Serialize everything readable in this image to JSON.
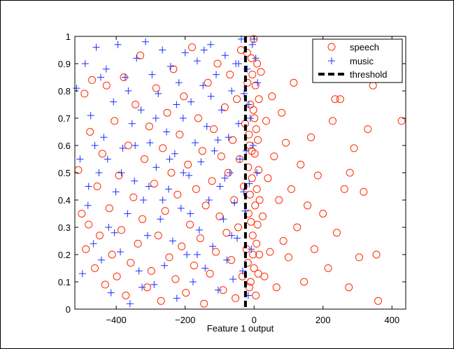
{
  "chart_data": {
    "type": "scatter",
    "title": "",
    "xlabel": "Feature 1 output",
    "ylabel": "",
    "xlim": [
      -520,
      440
    ],
    "ylim": [
      0,
      1
    ],
    "xticks": [
      -400,
      -200,
      0,
      200,
      400
    ],
    "yticks": [
      0,
      0.1,
      0.2,
      0.3,
      0.4,
      0.5,
      0.6,
      0.7,
      0.8,
      0.9,
      1
    ],
    "grid": false,
    "legend_position": "top-right",
    "threshold_x": -25,
    "series": [
      {
        "name": "speech",
        "marker": "circle",
        "color": "#ff2a00",
        "points": [
          [
            -510,
            0.51
          ],
          [
            -500,
            0.35
          ],
          [
            -492,
            0.79
          ],
          [
            -488,
            0.22
          ],
          [
            -480,
            0.31
          ],
          [
            -476,
            0.65
          ],
          [
            -470,
            0.84
          ],
          [
            -462,
            0.15
          ],
          [
            -455,
            0.45
          ],
          [
            -448,
            0.27
          ],
          [
            -440,
            0.57
          ],
          [
            -432,
            0.09
          ],
          [
            -428,
            0.82
          ],
          [
            -420,
            0.37
          ],
          [
            -412,
            0.2
          ],
          [
            -405,
            0.69
          ],
          [
            -398,
            0.12
          ],
          [
            -392,
            0.49
          ],
          [
            -385,
            0.29
          ],
          [
            -378,
            0.85
          ],
          [
            -372,
            0.05
          ],
          [
            -365,
            0.6
          ],
          [
            -358,
            0.17
          ],
          [
            -350,
            0.41
          ],
          [
            -344,
            0.75
          ],
          [
            -337,
            0.24
          ],
          [
            -330,
            0.93
          ],
          [
            -324,
            0.33
          ],
          [
            -318,
            0.55
          ],
          [
            -310,
            0.08
          ],
          [
            -304,
            0.67
          ],
          [
            -298,
            0.14
          ],
          [
            -290,
            0.46
          ],
          [
            -284,
            0.81
          ],
          [
            -278,
            0.27
          ],
          [
            -270,
            0.03
          ],
          [
            -265,
            0.59
          ],
          [
            -258,
            0.36
          ],
          [
            -252,
            0.72
          ],
          [
            -246,
            0.19
          ],
          [
            -240,
            0.5
          ],
          [
            -234,
            0.88
          ],
          [
            -228,
            0.11
          ],
          [
            -222,
            0.42
          ],
          [
            -216,
            0.64
          ],
          [
            -210,
            0.23
          ],
          [
            -204,
            0.78
          ],
          [
            -198,
            0.06
          ],
          [
            -192,
            0.53
          ],
          [
            -186,
            0.31
          ],
          [
            -180,
            0.96
          ],
          [
            -174,
            0.16
          ],
          [
            -168,
            0.44
          ],
          [
            -162,
            0.7
          ],
          [
            -156,
            0.26
          ],
          [
            -150,
            0.58
          ],
          [
            -145,
            0.02
          ],
          [
            -140,
            0.38
          ],
          [
            -134,
            0.83
          ],
          [
            -128,
            0.13
          ],
          [
            -122,
            0.47
          ],
          [
            -117,
            0.66
          ],
          [
            -111,
            0.21
          ],
          [
            -106,
            0.9
          ],
          [
            -100,
            0.34
          ],
          [
            -95,
            0.56
          ],
          [
            -90,
            0.07
          ],
          [
            -85,
            0.74
          ],
          [
            -80,
            0.28
          ],
          [
            -75,
            0.5
          ],
          [
            -70,
            0.86
          ],
          [
            -66,
            0.18
          ],
          [
            -62,
            0.62
          ],
          [
            -58,
            0.4
          ],
          [
            -54,
            0.04
          ],
          [
            -50,
            0.77
          ],
          [
            -46,
            0.3
          ],
          [
            -42,
            0.55
          ],
          [
            -38,
            0.95
          ],
          [
            -34,
            0.12
          ],
          [
            -30,
            0.45
          ],
          [
            -26,
            0.68
          ],
          [
            -22,
            0.22
          ],
          [
            -19,
            0.83
          ],
          [
            -16,
            0.35
          ],
          [
            -13,
            0.6
          ],
          [
            -10,
            0.1
          ],
          [
            -8,
            0.92
          ],
          [
            -6,
            0.48
          ],
          [
            -4,
            0.27
          ],
          [
            -2,
            0.73
          ],
          [
            0,
            0.15
          ],
          [
            2,
            0.57
          ],
          [
            3,
            0.38
          ],
          [
            4,
            0.82
          ],
          [
            5,
            0.05
          ],
          [
            6,
            0.66
          ],
          [
            7,
            0.24
          ],
          [
            8,
            0.44
          ],
          [
            9,
            0.9
          ],
          [
            10,
            0.31
          ],
          [
            11,
            0.62
          ],
          [
            12,
            0.13
          ],
          [
            13,
            0.51
          ],
          [
            14,
            0.77
          ],
          [
            15,
            0.2
          ],
          [
            16,
            0.4
          ],
          [
            -1,
            0.99
          ],
          [
            1,
            0.7
          ],
          [
            -3,
            0.2
          ],
          [
            -5,
            0.86
          ],
          [
            -7,
            0.58
          ],
          [
            -9,
            0.32
          ],
          [
            -11,
            0.75
          ],
          [
            -12,
            0.42
          ],
          [
            -14,
            0.08
          ],
          [
            -15,
            0.64
          ],
          [
            -17,
            0.52
          ],
          [
            -18,
            0.17
          ],
          [
            -20,
            0.94
          ],
          [
            20,
            0.87
          ],
          [
            25,
            0.34
          ],
          [
            30,
            0.12
          ],
          [
            35,
            0.69
          ],
          [
            40,
            0.48
          ],
          [
            46,
            0.21
          ],
          [
            52,
            0.78
          ],
          [
            58,
            0.56
          ],
          [
            65,
            0.08
          ],
          [
            72,
            0.4
          ],
          [
            80,
            0.72
          ],
          [
            85,
            0.25
          ],
          [
            92,
            0.61
          ],
          [
            100,
            0.19
          ],
          [
            108,
            0.44
          ],
          [
            115,
            0.83
          ],
          [
            125,
            0.3
          ],
          [
            135,
            0.53
          ],
          [
            145,
            0.1
          ],
          [
            155,
            0.38
          ],
          [
            165,
            0.63
          ],
          [
            175,
            0.22
          ],
          [
            185,
            0.49
          ],
          [
            200,
            0.35
          ],
          [
            215,
            0.15
          ],
          [
            228,
            0.69
          ],
          [
            240,
            0.28
          ],
          [
            250,
            0.77
          ],
          [
            262,
            0.44
          ],
          [
            275,
            0.08
          ],
          [
            290,
            0.59
          ],
          [
            305,
            0.19
          ],
          [
            318,
            0.43
          ],
          [
            330,
            0.66
          ],
          [
            345,
            0.82
          ],
          [
            360,
            0.03
          ],
          [
            428,
            0.69
          ],
          [
            355,
            0.2
          ],
          [
            235,
            0.77
          ],
          [
            278,
            0.5
          ]
        ]
      },
      {
        "name": "music",
        "marker": "plus",
        "color": "#1a2cff",
        "points": [
          [
            -515,
            0.81
          ],
          [
            -505,
            0.55
          ],
          [
            -498,
            0.13
          ],
          [
            -490,
            0.9
          ],
          [
            -482,
            0.38
          ],
          [
            -474,
            0.71
          ],
          [
            -466,
            0.24
          ],
          [
            -458,
            0.96
          ],
          [
            -450,
            0.5
          ],
          [
            -443,
            0.18
          ],
          [
            -436,
            0.63
          ],
          [
            -429,
            0.88
          ],
          [
            -422,
            0.3
          ],
          [
            -415,
            0.06
          ],
          [
            -408,
            0.76
          ],
          [
            -401,
            0.43
          ],
          [
            -395,
            0.97
          ],
          [
            -388,
            0.21
          ],
          [
            -381,
            0.59
          ],
          [
            -374,
            0.85
          ],
          [
            -367,
            0.35
          ],
          [
            -360,
            0.02
          ],
          [
            -354,
            0.68
          ],
          [
            -347,
            0.47
          ],
          [
            -341,
            0.92
          ],
          [
            -334,
            0.14
          ],
          [
            -328,
            0.73
          ],
          [
            -321,
            0.4
          ],
          [
            -315,
            0.98
          ],
          [
            -309,
            0.27
          ],
          [
            -302,
            0.61
          ],
          [
            -296,
            0.86
          ],
          [
            -290,
            0.09
          ],
          [
            -284,
            0.52
          ],
          [
            -278,
            0.79
          ],
          [
            -272,
            0.33
          ],
          [
            -266,
            0.95
          ],
          [
            -260,
            0.16
          ],
          [
            -254,
            0.65
          ],
          [
            -248,
            0.44
          ],
          [
            -242,
            0.89
          ],
          [
            -236,
            0.25
          ],
          [
            -230,
            0.57
          ],
          [
            -224,
            0.04
          ],
          [
            -218,
            0.83
          ],
          [
            -212,
            0.37
          ],
          [
            -206,
            0.7
          ],
          [
            -200,
            0.94
          ],
          [
            -195,
            0.2
          ],
          [
            -189,
            0.49
          ],
          [
            -183,
            0.76
          ],
          [
            -177,
            0.1
          ],
          [
            -171,
            0.61
          ],
          [
            -165,
            0.91
          ],
          [
            -159,
            0.29
          ],
          [
            -154,
            0.54
          ],
          [
            -148,
            0.82
          ],
          [
            -142,
            0.15
          ],
          [
            -137,
            0.67
          ],
          [
            -131,
            0.4
          ],
          [
            -126,
            0.97
          ],
          [
            -120,
            0.23
          ],
          [
            -115,
            0.58
          ],
          [
            -110,
            0.86
          ],
          [
            -104,
            0.07
          ],
          [
            -99,
            0.45
          ],
          [
            -94,
            0.73
          ],
          [
            -89,
            0.33
          ],
          [
            -84,
            0.93
          ],
          [
            -79,
            0.18
          ],
          [
            -74,
            0.63
          ],
          [
            -70,
            0.5
          ],
          [
            -65,
            0.8
          ],
          [
            -61,
            0.11
          ],
          [
            -57,
            0.39
          ],
          [
            -53,
            0.9
          ],
          [
            -49,
            0.26
          ],
          [
            -45,
            0.68
          ],
          [
            -41,
            0.55
          ],
          [
            -37,
            0.99
          ],
          [
            -33,
            0.14
          ],
          [
            -29,
            0.79
          ],
          [
            -26,
            0.36
          ],
          [
            -23,
            0.58
          ],
          [
            -20,
            0.88
          ],
          [
            -17,
            0.05
          ],
          [
            -14,
            0.46
          ],
          [
            -11,
            0.7
          ],
          [
            -8,
            0.22
          ],
          [
            -5,
            0.97
          ],
          [
            -480,
            0.45
          ],
          [
            -462,
            0.6
          ],
          [
            -445,
            0.85
          ],
          [
            -425,
            0.55
          ],
          [
            -405,
            0.28
          ],
          [
            -385,
            0.5
          ],
          [
            -365,
            0.8
          ],
          [
            -345,
            0.6
          ],
          [
            -325,
            0.08
          ],
          [
            -305,
            0.45
          ],
          [
            -285,
            0.7
          ],
          [
            -265,
            0.4
          ],
          [
            -245,
            0.55
          ],
          [
            -225,
            0.75
          ],
          [
            -205,
            0.5
          ],
          [
            -185,
            0.35
          ],
          [
            -165,
            0.2
          ],
          [
            -145,
            0.95
          ],
          [
            -125,
            0.78
          ],
          [
            -105,
            0.62
          ],
          [
            -85,
            0.48
          ],
          [
            -65,
            0.27
          ],
          [
            -45,
            0.9
          ],
          [
            -30,
            0.43
          ],
          [
            -15,
            0.75
          ],
          [
            -3,
            0.6
          ],
          [
            0,
            0.99
          ],
          [
            5,
            0.92
          ],
          [
            8,
            0.5
          ],
          [
            10,
            0.83
          ]
        ]
      }
    ]
  },
  "legend": {
    "items": [
      {
        "label": "speech"
      },
      {
        "label": "music"
      },
      {
        "label": "threshold"
      }
    ]
  }
}
